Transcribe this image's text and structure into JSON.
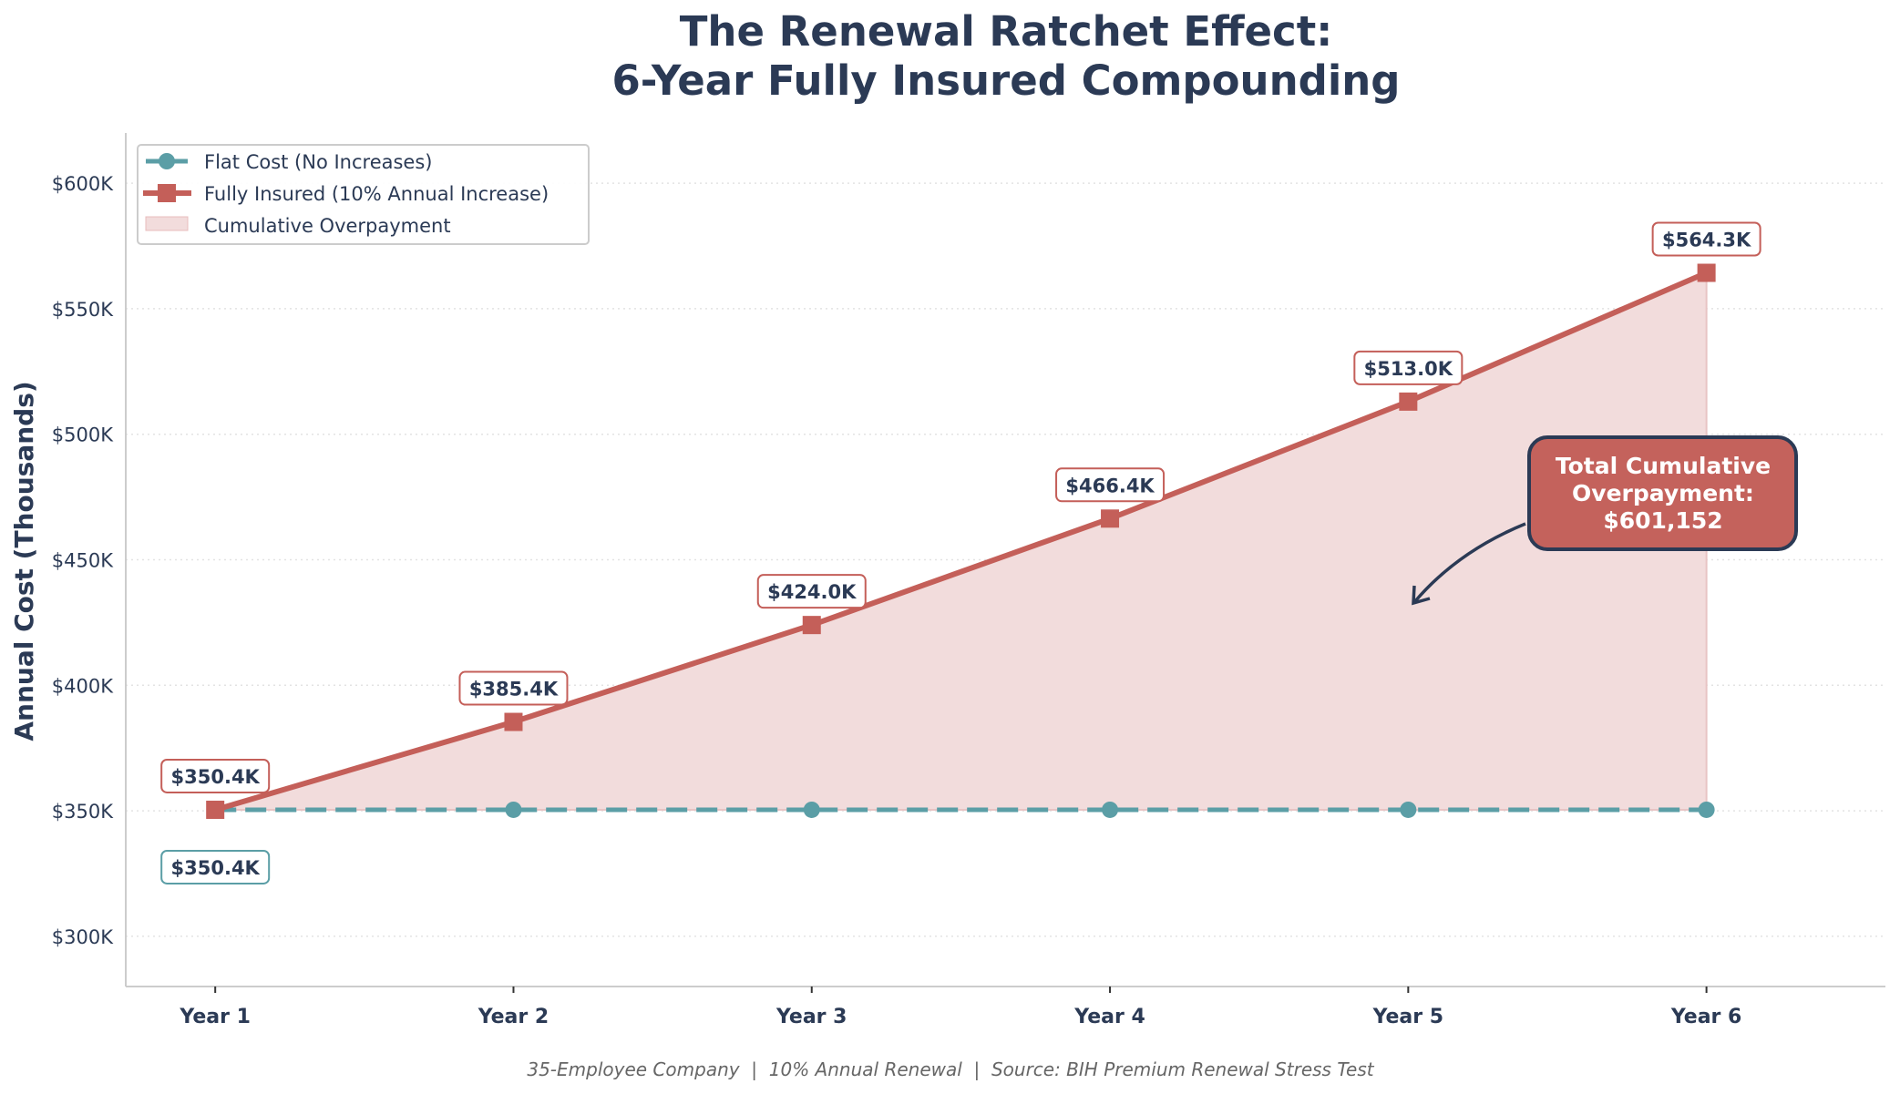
{
  "chart_data": {
    "type": "line",
    "title_line1": "The Renewal Ratchet Effect:",
    "title_line2": "6-Year Fully Insured Compounding",
    "xlabel": "",
    "ylabel": "Annual Cost (Thousands)",
    "categories": [
      "Year 1",
      "Year 2",
      "Year 3",
      "Year 4",
      "Year 5",
      "Year 6"
    ],
    "ylim": [
      280,
      620
    ],
    "yticks": [
      300,
      350,
      400,
      450,
      500,
      550,
      600
    ],
    "ytick_labels": [
      "$300K",
      "$350K",
      "$400K",
      "$450K",
      "$500K",
      "$550K",
      "$600K"
    ],
    "grid": "horizontal dotted",
    "legend_position": "top-left",
    "series": [
      {
        "name": "Flat Cost (No Increases)",
        "values": [
          350.4,
          350.4,
          350.4,
          350.4,
          350.4,
          350.4
        ],
        "color": "#5b9ea6",
        "style": "dashed",
        "marker": "circle"
      },
      {
        "name": "Fully Insured (10% Annual Increase)",
        "values": [
          350.4,
          385.4,
          424.0,
          466.4,
          513.0,
          564.3
        ],
        "color": "#c45f59",
        "style": "solid",
        "marker": "square"
      }
    ],
    "fill": {
      "name": "Cumulative Overpayment",
      "color": "#f2dcdc"
    },
    "data_labels": {
      "insured": [
        "$350.4K",
        "$385.4K",
        "$424.0K",
        "$466.4K",
        "$513.0K",
        "$564.3K"
      ],
      "flat_first": "$350.4K"
    },
    "annotation": {
      "lines": [
        "Total Cumulative",
        "Overpayment:",
        "$601,152"
      ],
      "box_color": "#c4625c",
      "border_color": "#2b3a55",
      "points_to_category": "Year 5"
    },
    "footer": "35-Employee Company  |  10% Annual Renewal  |  Source: BIH Premium Renewal Stress Test",
    "text_color": "#2b3a55"
  }
}
